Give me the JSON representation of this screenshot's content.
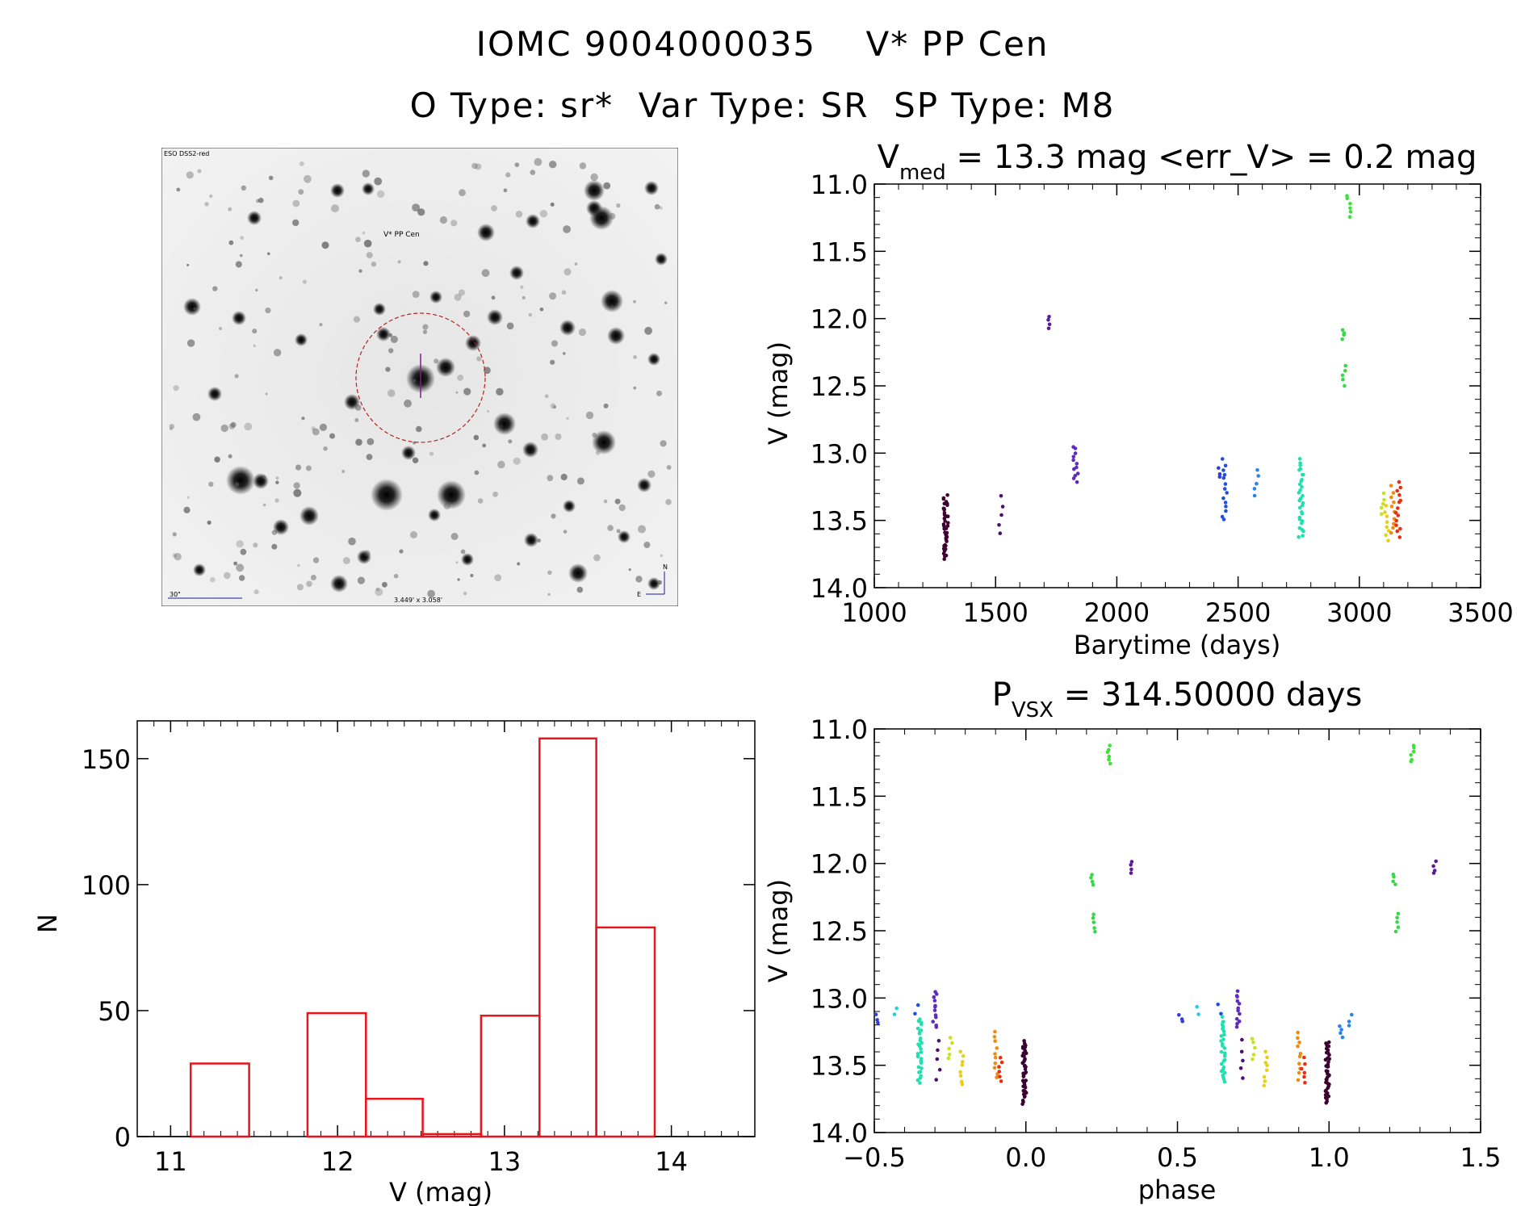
{
  "header": {
    "line1_id": "IOMC 9004000035",
    "line1_name": "V* PP Cen",
    "line2_otype": "O Type: sr*",
    "line2_vartype": "Var Type: SR",
    "line2_sptype": "SP Type: M8"
  },
  "sky_image": {
    "survey_label": "ESO DSS2-red",
    "target_label": "V* PP Cen",
    "scale_label": "30\"",
    "fov_label": "3.449' x 3.058'",
    "compass_n": "N",
    "compass_e": "E"
  },
  "colors": {
    "histogram": "#e8141c",
    "axes": "#000000",
    "circle": "#b22222",
    "overlay_text": "#1a1a9c"
  },
  "chart_data": [
    {
      "type": "scatter",
      "id": "light_curve",
      "title_prefix": "V",
      "title_sub": "med",
      "title_rest": " = 13.3 mag <err_V> = 0.2 mag",
      "xlabel": "Barytime (days)",
      "ylabel": "V (mag)",
      "xlim": [
        1000,
        3500
      ],
      "ylim": [
        14.0,
        11.0
      ],
      "xticks": [
        1000,
        1500,
        2000,
        2500,
        3000,
        3500
      ],
      "yticks": [
        11.0,
        11.5,
        12.0,
        12.5,
        13.0,
        13.5,
        14.0
      ],
      "groups": [
        {
          "t": 1295,
          "vmin": 13.32,
          "vmax": 13.78,
          "n": 40,
          "color": "#3b0030"
        },
        {
          "t": 1520,
          "vmin": 13.32,
          "vmax": 13.6,
          "n": 5,
          "color": "#4b0f6e"
        },
        {
          "t": 1720,
          "vmin": 11.98,
          "vmax": 12.08,
          "n": 4,
          "color": "#5a1a9a"
        },
        {
          "t": 1830,
          "vmin": 12.95,
          "vmax": 13.22,
          "n": 12,
          "color": "#5e2bc0"
        },
        {
          "t": 2420,
          "vmin": 13.12,
          "vmax": 13.18,
          "n": 3,
          "color": "#2f3fd8"
        },
        {
          "t": 2445,
          "vmin": 13.05,
          "vmax": 13.5,
          "n": 14,
          "color": "#2050e0"
        },
        {
          "t": 2575,
          "vmin": 13.13,
          "vmax": 13.32,
          "n": 5,
          "color": "#2a86e6"
        },
        {
          "t": 2760,
          "vmin": 13.05,
          "vmax": 13.63,
          "n": 30,
          "color": "#20e0b0"
        },
        {
          "t": 2935,
          "vmin": 12.35,
          "vmax": 12.5,
          "n": 5,
          "color": "#38d84a"
        },
        {
          "t": 2938,
          "vmin": 12.08,
          "vmax": 12.15,
          "n": 4,
          "color": "#38d84a"
        },
        {
          "t": 2955,
          "vmin": 11.08,
          "vmax": 11.25,
          "n": 6,
          "color": "#3ee03a"
        },
        {
          "t": 3100,
          "vmin": 13.3,
          "vmax": 13.45,
          "n": 5,
          "color": "#c8e020"
        },
        {
          "t": 3115,
          "vmin": 13.4,
          "vmax": 13.65,
          "n": 8,
          "color": "#e8d018"
        },
        {
          "t": 3140,
          "vmin": 13.25,
          "vmax": 13.6,
          "n": 10,
          "color": "#f08a10"
        },
        {
          "t": 3160,
          "vmin": 13.22,
          "vmax": 13.62,
          "n": 14,
          "color": "#e83010"
        }
      ]
    },
    {
      "type": "bar",
      "id": "histogram",
      "xlabel": "V (mag)",
      "ylabel": "N",
      "xlim": [
        10.8,
        14.5
      ],
      "ylim": [
        0,
        165
      ],
      "xticks": [
        11,
        12,
        13,
        14
      ],
      "yticks": [
        0,
        50,
        100,
        150
      ],
      "bins": [
        {
          "lo": 11.12,
          "hi": 11.47,
          "count": 29
        },
        {
          "lo": 11.47,
          "hi": 11.82,
          "count": 0
        },
        {
          "lo": 11.82,
          "hi": 12.17,
          "count": 49
        },
        {
          "lo": 12.17,
          "hi": 12.51,
          "count": 15
        },
        {
          "lo": 12.51,
          "hi": 12.86,
          "count": 1
        },
        {
          "lo": 12.86,
          "hi": 13.21,
          "count": 48
        },
        {
          "lo": 13.21,
          "hi": 13.55,
          "count": 158
        },
        {
          "lo": 13.55,
          "hi": 13.9,
          "count": 83
        }
      ]
    },
    {
      "type": "scatter",
      "id": "phased_curve",
      "title_prefix": "P",
      "title_sub": "VSX",
      "title_rest": " = 314.50000 days",
      "xlabel": "phase",
      "ylabel": "V (mag)",
      "period": 314.5,
      "epoch": 1305,
      "xlim": [
        -0.5,
        1.5
      ],
      "ylim": [
        14.0,
        11.0
      ],
      "xticks": [
        -0.5,
        0.0,
        0.5,
        1.0,
        1.5
      ],
      "yticks": [
        11.0,
        11.5,
        12.0,
        12.5,
        13.0,
        13.5,
        14.0
      ],
      "groups": [
        {
          "phase": -0.005,
          "vmin": 13.32,
          "vmax": 13.78,
          "n": 40,
          "color": "#3b0030"
        },
        {
          "phase": 0.225,
          "vmin": 12.38,
          "vmax": 12.5,
          "n": 5,
          "color": "#38d84a"
        },
        {
          "phase": 0.218,
          "vmin": 12.08,
          "vmax": 12.15,
          "n": 4,
          "color": "#38d84a"
        },
        {
          "phase": 0.275,
          "vmin": 11.12,
          "vmax": 11.25,
          "n": 6,
          "color": "#3ee03a"
        },
        {
          "phase": 0.35,
          "vmin": 11.98,
          "vmax": 12.08,
          "n": 4,
          "color": "#5a1a9a"
        },
        {
          "phase": 0.65,
          "vmin": 13.15,
          "vmax": 13.63,
          "n": 28,
          "color": "#20e0b0"
        },
        {
          "phase": 0.7,
          "vmin": 12.95,
          "vmax": 13.22,
          "n": 12,
          "color": "#5e2bc0"
        },
        {
          "phase": 0.71,
          "vmin": 13.32,
          "vmax": 13.6,
          "n": 5,
          "color": "#4b0f6e"
        },
        {
          "phase": 0.75,
          "vmin": 13.3,
          "vmax": 13.45,
          "n": 5,
          "color": "#c8e020"
        },
        {
          "phase": 0.79,
          "vmin": 13.4,
          "vmax": 13.65,
          "n": 8,
          "color": "#e8d018"
        },
        {
          "phase": 0.9,
          "vmin": 13.25,
          "vmax": 13.6,
          "n": 10,
          "color": "#f08a10"
        },
        {
          "phase": 0.915,
          "vmin": 13.45,
          "vmax": 13.62,
          "n": 6,
          "color": "#e83010"
        },
        {
          "phase": 0.995,
          "vmin": 13.32,
          "vmax": 13.78,
          "n": 40,
          "color": "#3b0030"
        },
        {
          "phase": 1.04,
          "vmin": 13.2,
          "vmax": 13.3,
          "n": 4,
          "color": "#2a86e6"
        },
        {
          "phase": 1.07,
          "vmin": 13.13,
          "vmax": 13.2,
          "n": 3,
          "color": "#2a86e6"
        },
        {
          "phase": 1.225,
          "vmin": 12.38,
          "vmax": 12.5,
          "n": 5,
          "color": "#38d84a"
        },
        {
          "phase": 1.218,
          "vmin": 12.08,
          "vmax": 12.15,
          "n": 4,
          "color": "#38d84a"
        },
        {
          "phase": 1.275,
          "vmin": 11.12,
          "vmax": 11.25,
          "n": 6,
          "color": "#3ee03a"
        },
        {
          "phase": 1.35,
          "vmin": 11.98,
          "vmax": 12.08,
          "n": 4,
          "color": "#5a1a9a"
        },
        {
          "phase": -0.35,
          "vmin": 13.15,
          "vmax": 13.63,
          "n": 28,
          "color": "#20e0b0"
        },
        {
          "phase": -0.3,
          "vmin": 12.95,
          "vmax": 13.22,
          "n": 12,
          "color": "#5e2bc0"
        },
        {
          "phase": -0.29,
          "vmin": 13.32,
          "vmax": 13.6,
          "n": 5,
          "color": "#4b0f6e"
        },
        {
          "phase": -0.25,
          "vmin": 13.3,
          "vmax": 13.45,
          "n": 5,
          "color": "#c8e020"
        },
        {
          "phase": -0.21,
          "vmin": 13.4,
          "vmax": 13.65,
          "n": 8,
          "color": "#e8d018"
        },
        {
          "phase": -0.1,
          "vmin": 13.25,
          "vmax": 13.6,
          "n": 10,
          "color": "#f08a10"
        },
        {
          "phase": -0.085,
          "vmin": 13.45,
          "vmax": 13.62,
          "n": 6,
          "color": "#e83010"
        },
        {
          "phase": -0.49,
          "vmin": 13.13,
          "vmax": 13.18,
          "n": 3,
          "color": "#2f3fd8"
        },
        {
          "phase": -0.43,
          "vmin": 13.07,
          "vmax": 13.12,
          "n": 2,
          "color": "#20d0e0"
        },
        {
          "phase": -0.36,
          "vmin": 13.05,
          "vmax": 13.12,
          "n": 2,
          "color": "#2050e0"
        },
        {
          "phase": 0.51,
          "vmin": 13.13,
          "vmax": 13.18,
          "n": 3,
          "color": "#2f3fd8"
        },
        {
          "phase": 0.57,
          "vmin": 13.07,
          "vmax": 13.12,
          "n": 2,
          "color": "#20d0e0"
        },
        {
          "phase": 0.64,
          "vmin": 13.05,
          "vmax": 13.12,
          "n": 2,
          "color": "#2050e0"
        }
      ]
    }
  ]
}
